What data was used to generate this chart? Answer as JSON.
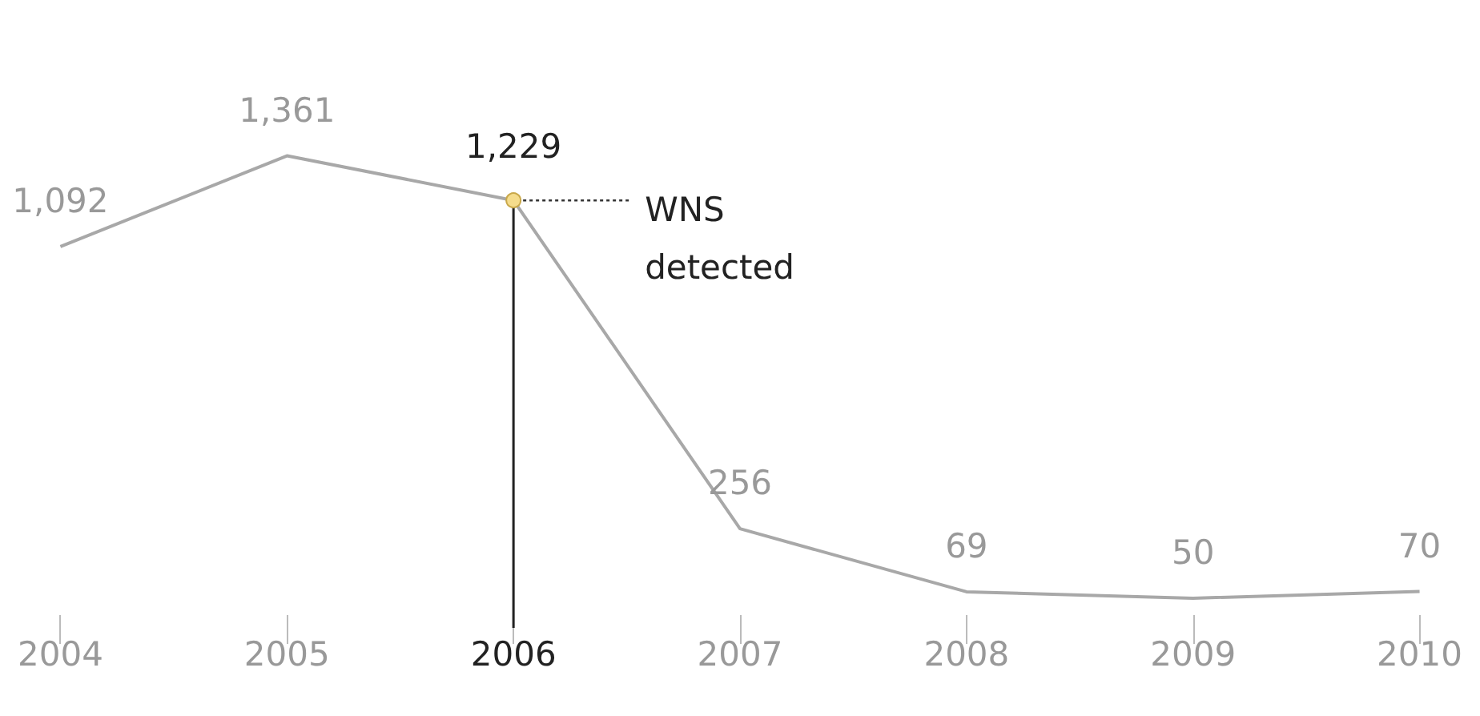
{
  "chart_data": {
    "type": "line",
    "categories": [
      "2004",
      "2005",
      "2006",
      "2007",
      "2008",
      "2009",
      "2010"
    ],
    "series": [
      {
        "color": "#a8a8a8",
        "values": [
          1092,
          1361,
          1229,
          256,
          69,
          50,
          70
        ],
        "value_labels": [
          "1,092",
          "1,361",
          "1,229",
          "256",
          "69",
          "50",
          "70"
        ]
      }
    ],
    "ref_lines": [
      {
        "axis": "x",
        "value": "2006",
        "color": "#222222",
        "line_style": "solid"
      }
    ],
    "annotations": [
      {
        "text": "WNS\ndetected",
        "x": "2006",
        "y": 1229
      }
    ],
    "marker": "none",
    "grid": false
  }
}
